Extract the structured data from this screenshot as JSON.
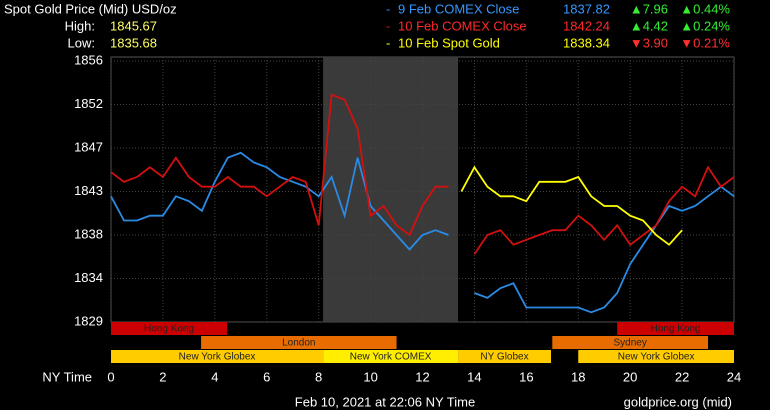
{
  "chart_data": {
    "type": "line",
    "title": "Spot Gold Price (Mid) USD/oz",
    "high_label": "High:",
    "high": 1845.67,
    "low_label": "Low:",
    "low": 1835.68,
    "x_label": "NY Time",
    "footer": "Feb 10, 2021 at 22:06 NY Time",
    "source": "goldprice.org (mid)",
    "xlim": [
      0,
      24
    ],
    "xticks": [
      0,
      2,
      4,
      6,
      8,
      10,
      12,
      14,
      16,
      18,
      20,
      22,
      24
    ],
    "ylim": [
      1829,
      1856
    ],
    "yticks": [
      1829,
      {
        "value": 1833.5,
        "label": "1834"
      },
      1838,
      {
        "value": 1842.5,
        "label": "1843"
      },
      1847,
      {
        "value": 1851.5,
        "label": "1852"
      },
      1856
    ],
    "grid": true,
    "shade": {
      "start": 8.17,
      "end": 13.37,
      "color": "#3a3a3a"
    },
    "x": [
      0,
      0.5,
      1,
      1.5,
      2,
      2.5,
      3,
      3.5,
      4,
      4.5,
      5,
      5.5,
      6,
      6.5,
      7,
      7.5,
      8,
      8.5,
      9,
      9.5,
      10,
      10.5,
      11,
      11.5,
      12,
      12.5,
      13,
      13.5,
      14,
      14.5,
      15,
      15.5,
      16,
      16.5,
      17,
      17.5,
      18,
      18.5,
      19,
      19.5,
      20,
      20.5,
      21,
      21.5,
      22,
      22.5,
      23,
      23.5,
      24
    ],
    "series": [
      {
        "name": "9 Feb COMEX Close",
        "color": "#2a8be6",
        "text_color": "#3399ff",
        "close": 1837.82,
        "change": "▲7.96",
        "change_pct": "▲0.44%",
        "change_color": "#33ee33",
        "values": [
          1842,
          1839.5,
          1839.5,
          1840,
          1840,
          1842,
          1841.5,
          1840.5,
          1843.5,
          1846,
          1846.5,
          1845.5,
          1845,
          1844,
          1843.5,
          1843,
          1842,
          1844,
          1840,
          1846,
          1841,
          1839.5,
          1838,
          1836.5,
          1838,
          1838.5,
          1838,
          null,
          1832,
          1831.5,
          1832.5,
          1833,
          1830.5,
          1830.5,
          1830.5,
          1830.5,
          1830.5,
          1830,
          1830.5,
          1832,
          1835,
          1837,
          1839,
          1841,
          1840.5,
          1841,
          1842,
          1843,
          1842
        ]
      },
      {
        "name": "10 Feb COMEX Close",
        "color": "#d4100f",
        "text_color": "#ff2a2a",
        "close": 1842.24,
        "change": "▲4.42",
        "change_pct": "▲0.24%",
        "change_color": "#33ee33",
        "values": [
          1844.5,
          1843.5,
          1844,
          1845,
          1844,
          1846,
          1844,
          1843,
          1843,
          1844,
          1843,
          1843,
          1842,
          1843,
          1844,
          1843.5,
          1839,
          1852.5,
          1852,
          1849,
          1840,
          1841,
          1839,
          1838,
          1841,
          1843,
          1843,
          null,
          1836,
          1838,
          1838.5,
          1837,
          1837.5,
          1838,
          1838.5,
          1838.5,
          1840,
          1839,
          1837.5,
          1839,
          1837,
          1838,
          1839,
          1841.5,
          1843,
          1842,
          1845,
          1843,
          1844
        ]
      },
      {
        "name": "10 Feb Spot Gold",
        "color": "#ffff00",
        "text_color": "#ffff00",
        "close": 1838.34,
        "change": "▼3.90",
        "change_pct": "▼0.21%",
        "change_color": "#ff3030",
        "values": [
          null,
          null,
          null,
          null,
          null,
          null,
          null,
          null,
          null,
          null,
          null,
          null,
          null,
          null,
          null,
          null,
          null,
          null,
          null,
          null,
          null,
          null,
          null,
          null,
          null,
          null,
          null,
          1842.5,
          1845,
          1843,
          1842,
          1842,
          1841.5,
          1843.5,
          1843.5,
          1843.5,
          1844,
          1842,
          1841,
          1841,
          1840,
          1839.5,
          1838,
          1837,
          1838.5,
          null,
          null,
          null,
          null
        ]
      }
    ],
    "sessions": [
      {
        "name": "Hong Kong",
        "start": 0,
        "end": 4.47,
        "row": 0,
        "color": "#cc0000"
      },
      {
        "name": "Hong Kong",
        "start": 19.5,
        "end": 24,
        "row": 0,
        "color": "#cc0000"
      },
      {
        "name": "London",
        "start": 3.47,
        "end": 11,
        "row": 1,
        "color": "#e86c00"
      },
      {
        "name": "Sydney",
        "start": 17,
        "end": 23,
        "row": 1,
        "color": "#e86c00"
      },
      {
        "name": "New York Globex",
        "start": 0,
        "end": 8.17,
        "row": 2,
        "color": "#ffcc00"
      },
      {
        "name": "New York COMEX",
        "start": 8.17,
        "end": 13.37,
        "row": 2,
        "color": "#ffee00"
      },
      {
        "name": "NY Globex",
        "start": 13.37,
        "end": 16.95,
        "row": 2,
        "color": "#ffcc00"
      },
      {
        "name": "New York Globex",
        "start": 18,
        "end": 24,
        "row": 2,
        "color": "#ffcc00"
      }
    ]
  }
}
